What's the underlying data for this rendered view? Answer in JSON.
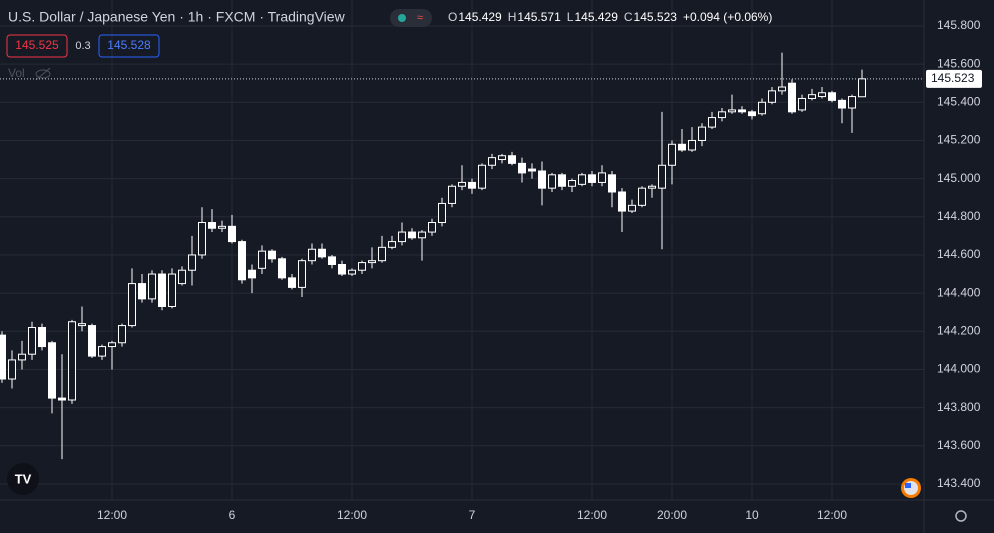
{
  "chart_data": {
    "type": "candlestick",
    "title": "U.S. Dollar / Japanese Yen · 1h · FXCM · TradingView",
    "ohlc_labels": [
      "O",
      "H",
      "L",
      "C"
    ],
    "change": "+0.094 (+0.06%)",
    "bid": 145.525,
    "spread": 0.3,
    "ask": 145.528,
    "volume_label": "Vol",
    "categories": [
      null,
      null,
      null,
      null,
      null,
      null,
      null,
      null,
      null,
      null,
      null,
      "12:00",
      null,
      null,
      null,
      null,
      null,
      null,
      null,
      null,
      null,
      null,
      null,
      "6",
      null,
      null,
      null,
      null,
      null,
      null,
      null,
      null,
      null,
      null,
      null,
      "12:00",
      null,
      null,
      null,
      null,
      null,
      null,
      null,
      null,
      null,
      null,
      null,
      "7",
      null,
      null,
      null,
      null,
      null,
      null,
      null,
      null,
      null,
      null,
      null,
      "12:00",
      null,
      null,
      null,
      null,
      null,
      null,
      null,
      "20:00",
      null,
      null,
      null,
      null,
      null,
      null,
      null,
      "10",
      null,
      null,
      null,
      null,
      null,
      null,
      null,
      "12:00",
      null,
      null,
      null
    ],
    "open": [
      144.18,
      143.95,
      144.05,
      144.08,
      144.22,
      144.14,
      143.85,
      143.84,
      144.23,
      144.23,
      144.07,
      144.12,
      144.14,
      144.23,
      144.45,
      144.37,
      144.5,
      144.33,
      144.45,
      144.52,
      144.6,
      144.77,
      144.74,
      144.75,
      144.67,
      144.52,
      144.53,
      144.62,
      144.58,
      144.48,
      144.43,
      144.57,
      144.63,
      144.59,
      144.55,
      144.5,
      144.52,
      144.56,
      144.57,
      144.64,
      144.67,
      144.72,
      144.69,
      144.72,
      144.77,
      144.87,
      144.96,
      144.98,
      144.95,
      145.07,
      145.1,
      145.12,
      145.08,
      145.05,
      145.04,
      144.95,
      145.02,
      144.96,
      144.97,
      145.02,
      144.98,
      145.02,
      144.93,
      144.83,
      144.86,
      144.95,
      144.95,
      145.07,
      145.18,
      145.15,
      145.2,
      145.27,
      145.32,
      145.35,
      145.36,
      145.35,
      145.34,
      145.4,
      145.46,
      145.5,
      145.36,
      145.42,
      145.43,
      145.45,
      145.41,
      145.37,
      145.429
    ],
    "high": [
      144.2,
      144.1,
      144.15,
      144.25,
      144.24,
      144.15,
      144.08,
      144.26,
      144.33,
      144.24,
      144.13,
      144.15,
      144.24,
      144.53,
      144.5,
      144.52,
      144.52,
      144.53,
      144.54,
      144.7,
      144.85,
      144.84,
      144.78,
      144.81,
      144.68,
      144.55,
      144.65,
      144.63,
      144.59,
      144.5,
      144.58,
      144.66,
      144.66,
      144.6,
      144.57,
      144.53,
      144.57,
      144.64,
      144.7,
      144.7,
      144.77,
      144.74,
      144.73,
      144.79,
      144.9,
      144.97,
      145.07,
      145.0,
      145.08,
      145.13,
      145.13,
      145.14,
      145.11,
      145.08,
      145.09,
      145.03,
      145.03,
      145.0,
      145.03,
      145.04,
      145.07,
      145.04,
      144.95,
      144.89,
      144.96,
      144.97,
      145.35,
      145.2,
      145.26,
      145.27,
      145.29,
      145.35,
      145.37,
      145.44,
      145.38,
      145.36,
      145.42,
      145.48,
      145.66,
      145.52,
      145.44,
      145.47,
      145.48,
      145.46,
      145.42,
      145.44,
      145.571
    ],
    "low": [
      143.93,
      143.9,
      144.0,
      144.05,
      144.1,
      143.77,
      143.53,
      143.82,
      144.2,
      144.06,
      144.05,
      144.0,
      144.12,
      144.22,
      144.35,
      144.35,
      144.31,
      144.32,
      144.44,
      144.44,
      144.58,
      144.72,
      144.72,
      144.66,
      144.45,
      144.4,
      144.5,
      144.56,
      144.47,
      144.42,
      144.38,
      144.55,
      144.58,
      144.53,
      144.49,
      144.49,
      144.5,
      144.53,
      144.56,
      144.63,
      144.65,
      144.68,
      144.57,
      144.7,
      144.75,
      144.85,
      144.94,
      144.92,
      144.94,
      145.05,
      145.08,
      145.07,
      144.98,
      145.0,
      144.86,
      144.93,
      144.94,
      144.93,
      144.96,
      144.96,
      144.96,
      144.85,
      144.72,
      144.82,
      144.85,
      144.9,
      144.63,
      144.97,
      145.14,
      145.14,
      145.17,
      145.26,
      145.3,
      145.34,
      145.34,
      145.31,
      145.33,
      145.39,
      145.44,
      145.34,
      145.35,
      145.41,
      145.42,
      145.4,
      145.29,
      145.24,
      145.429
    ],
    "close": [
      143.95,
      144.05,
      144.08,
      144.22,
      144.12,
      143.85,
      143.84,
      144.25,
      144.24,
      144.07,
      144.12,
      144.14,
      144.23,
      144.45,
      144.37,
      144.5,
      144.33,
      144.5,
      144.52,
      144.6,
      144.77,
      144.74,
      144.75,
      144.67,
      144.47,
      144.48,
      144.62,
      144.58,
      144.48,
      144.43,
      144.57,
      144.63,
      144.59,
      144.55,
      144.5,
      144.52,
      144.56,
      144.57,
      144.64,
      144.67,
      144.72,
      144.69,
      144.72,
      144.77,
      144.87,
      144.96,
      144.98,
      144.95,
      145.07,
      145.11,
      145.12,
      145.08,
      145.03,
      145.04,
      144.95,
      145.02,
      144.96,
      144.99,
      145.02,
      144.98,
      145.03,
      144.93,
      144.83,
      144.86,
      144.95,
      144.96,
      145.07,
      145.18,
      145.15,
      145.2,
      145.27,
      145.32,
      145.35,
      145.36,
      145.35,
      145.33,
      145.4,
      145.46,
      145.48,
      145.35,
      145.42,
      145.44,
      145.45,
      145.41,
      145.37,
      145.43,
      145.523
    ],
    "color": "#ffffff",
    "ylim": [
      143.316,
      145.936
    ],
    "yticks": [
      {
        "value": 143.4,
        "label": "143.400"
      },
      {
        "value": 143.6,
        "label": "143.600"
      },
      {
        "value": 143.8,
        "label": "143.800"
      },
      {
        "value": 144.0,
        "label": "144.000"
      },
      {
        "value": 144.2,
        "label": "144.200"
      },
      {
        "value": 144.4,
        "label": "144.400"
      },
      {
        "value": 144.6,
        "label": "144.600"
      },
      {
        "value": 144.8,
        "label": "144.800"
      },
      {
        "value": 145.0,
        "label": "145.000"
      },
      {
        "value": 145.2,
        "label": "145.200"
      },
      {
        "value": 145.4,
        "label": "145.400"
      },
      {
        "value": 145.6,
        "label": "145.600"
      },
      {
        "value": 145.8,
        "label": "145.800"
      }
    ],
    "grid": true
  }
}
